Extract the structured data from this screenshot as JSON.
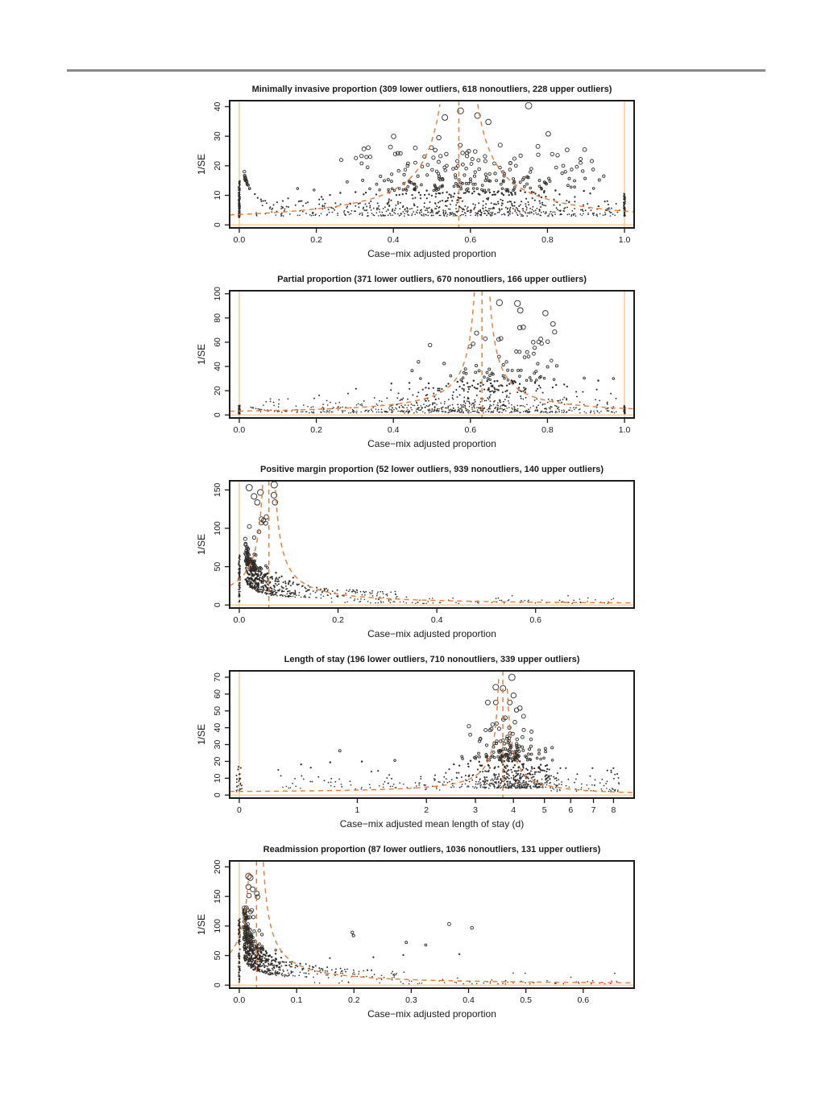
{
  "page": {
    "background": "#ffffff",
    "top_rule_color": "#8a8a8a"
  },
  "figure": {
    "point_color": "#2e2a26",
    "funnel_line_color": "#e87a33",
    "reference_line_color": "#f9c489",
    "frame_color": "#1c1c1c",
    "seed": 1337
  },
  "chart_data": [
    {
      "type": "scatter",
      "title": "Minimally invasive proportion (309 lower outliers, 618 nonoutliers, 228 upper outliers)",
      "xlabel": "Case−mix adjusted proportion",
      "ylabel": "1/SE",
      "x_scale": "linear",
      "xlim": [
        0,
        1
      ],
      "ylim": [
        0,
        41
      ],
      "x_ticks": [
        0,
        0.2,
        0.4,
        0.6,
        0.8,
        1.0
      ],
      "x_tick_labels": [
        "0.0",
        "0.2",
        "0.4",
        "0.6",
        "0.8",
        "1.0"
      ],
      "y_ticks": [
        0,
        10,
        20,
        30,
        40
      ],
      "target": 0.57,
      "limit_k": 2,
      "ref_x": [
        0,
        1
      ],
      "ref_y": [
        0
      ],
      "legend": "off",
      "grid": "off",
      "counts": {
        "lower_outliers": 309,
        "nonoutliers": 618,
        "upper_outliers": 228
      },
      "gen": {
        "columns": [
          {
            "x": 0.0,
            "n": 130,
            "ymin": 2.5,
            "ymax": 15
          },
          {
            "x": 1.0,
            "n": 75,
            "ymin": 3,
            "ymax": 10.5
          }
        ],
        "strands": {
          "count": 1,
          "a": 2.0,
          "xmin": 0.013,
          "xmax": 0.12,
          "nPer": 26
        },
        "clusters": [
          {
            "n": 380,
            "x": {
              "type": "normal",
              "mean": 0.6,
              "sd": 0.18,
              "min": 0.03,
              "max": 0.99
            },
            "y": {
              "type": "exp",
              "base": 3,
              "mean": 3.5,
              "max": 20
            }
          },
          {
            "n": 300,
            "x": {
              "type": "uniform",
              "min": 0.03,
              "max": 0.99
            },
            "y": {
              "type": "exp",
              "base": 3,
              "mean": 2.5,
              "max": 14
            }
          },
          {
            "n": 150,
            "x": {
              "type": "normal",
              "mean": 0.58,
              "sd": 0.13,
              "min": 0.28,
              "max": 0.95
            },
            "y": {
              "type": "exp",
              "base": 10,
              "mean": 6,
              "max": 38
            }
          },
          {
            "n": 60,
            "x": {
              "type": "uniform",
              "min": 0.25,
              "max": 0.95
            },
            "y": {
              "type": "uniform",
              "min": 14,
              "max": 27
            }
          },
          {
            "n": 5,
            "x": {
              "type": "normal",
              "mean": 0.62,
              "sd": 0.1,
              "min": 0.4,
              "max": 0.85
            },
            "y": {
              "type": "uniform",
              "min": 33,
              "max": 40.5
            }
          }
        ]
      }
    },
    {
      "type": "scatter",
      "title": "Partial proportion (371 lower outliers, 670 nonoutliers, 166 upper outliers)",
      "xlabel": "Case−mix adjusted proportion",
      "ylabel": "1/SE",
      "x_scale": "linear",
      "xlim": [
        0,
        1
      ],
      "ylim": [
        0,
        100
      ],
      "x_ticks": [
        0,
        0.2,
        0.4,
        0.6,
        0.8,
        1.0
      ],
      "x_tick_labels": [
        "0.0",
        "0.2",
        "0.4",
        "0.6",
        "0.8",
        "1.0"
      ],
      "y_ticks": [
        0,
        20,
        40,
        60,
        80,
        100
      ],
      "target": 0.63,
      "limit_k": 2,
      "ref_x": [
        0,
        1
      ],
      "ref_y": [
        0
      ],
      "legend": "off",
      "grid": "off",
      "counts": {
        "lower_outliers": 371,
        "nonoutliers": 670,
        "upper_outliers": 166
      },
      "gen": {
        "columns": [
          {
            "x": 0.0,
            "n": 110,
            "ymin": 0.8,
            "ymax": 8
          },
          {
            "x": 1.0,
            "n": 45,
            "ymin": 1,
            "ymax": 8
          }
        ],
        "strands": {
          "count": 1,
          "a": 1.1,
          "xmin": 0.03,
          "xmax": 0.3,
          "nPer": 28
        },
        "clusters": [
          {
            "n": 420,
            "x": {
              "type": "normal",
              "mean": 0.6,
              "sd": 0.16,
              "min": 0.05,
              "max": 0.99
            },
            "y": {
              "type": "exp",
              "base": 2,
              "mean": 6,
              "max": 30
            }
          },
          {
            "n": 260,
            "x": {
              "type": "uniform",
              "min": 0.05,
              "max": 0.99
            },
            "y": {
              "type": "exp",
              "base": 1.5,
              "mean": 3.5,
              "max": 18
            }
          },
          {
            "n": 150,
            "x": {
              "type": "normal",
              "mean": 0.67,
              "sd": 0.1,
              "min": 0.35,
              "max": 0.95
            },
            "y": {
              "type": "exp",
              "base": 18,
              "mean": 12,
              "max": 72
            }
          },
          {
            "n": 8,
            "x": {
              "type": "normal",
              "mean": 0.78,
              "sd": 0.07,
              "min": 0.6,
              "max": 0.92
            },
            "y": {
              "type": "uniform",
              "min": 58,
              "max": 98
            }
          }
        ]
      }
    },
    {
      "type": "scatter",
      "title": "Positive margin proportion (52 lower outliers, 939 nonoutliers, 140 upper outliers)",
      "xlabel": "Case−mix adjusted proportion",
      "ylabel": "1/SE",
      "x_scale": "linear",
      "xlim": [
        0,
        0.78
      ],
      "ylim": [
        0,
        158
      ],
      "x_ticks": [
        0,
        0.2,
        0.4,
        0.6
      ],
      "x_tick_labels": [
        "0.0",
        "0.2",
        "0.4",
        "0.6"
      ],
      "y_ticks": [
        0,
        50,
        100,
        150
      ],
      "target": 0.06,
      "limit_k": 2,
      "ref_x": [
        0
      ],
      "ref_y": [
        0
      ],
      "legend": "off",
      "grid": "off",
      "counts": {
        "lower_outliers": 52,
        "nonoutliers": 939,
        "upper_outliers": 140
      },
      "gen": {
        "columns": [
          {
            "x": 0.0,
            "n": 70,
            "ymin": 4,
            "ymax": 66
          }
        ],
        "strands": {
          "count": 6,
          "a": 3.8,
          "xmin": 0.012,
          "xmax": 0.32,
          "nPer": 52
        },
        "clusters": [
          {
            "n": 230,
            "x": {
              "type": "halfnormal",
              "base": 0.015,
              "sd": 0.045,
              "max": 0.5
            },
            "y": {
              "type": "invsqrt",
              "base": 3.2,
              "expmean": 2.2,
              "max": 150
            }
          },
          {
            "n": 90,
            "x": {
              "type": "uniform",
              "min": 0.18,
              "max": 0.77
            },
            "y": {
              "type": "exp",
              "base": 2,
              "mean": 3,
              "max": 12
            }
          },
          {
            "n": 14,
            "x": {
              "type": "normal",
              "mean": 0.05,
              "sd": 0.02,
              "min": 0.02,
              "max": 0.12
            },
            "y": {
              "type": "uniform",
              "min": 95,
              "max": 157
            }
          }
        ]
      }
    },
    {
      "type": "scatter",
      "title": "Length of stay (196 lower outliers, 710 nonoutliers, 339 upper outliers)",
      "xlabel": "Case−mix adjusted mean length of stay (d)",
      "ylabel": "1/SE",
      "x_scale": "log1p",
      "xlim": [
        0,
        8.6
      ],
      "ylim": [
        0,
        72
      ],
      "x_ticks": [
        0,
        1,
        2,
        3,
        4,
        5,
        6,
        7,
        8
      ],
      "x_tick_labels": [
        "0",
        "1",
        "2",
        "3",
        "4",
        "5",
        "6",
        "7",
        "8"
      ],
      "y_ticks": [
        0,
        10,
        20,
        30,
        40,
        50,
        60,
        70
      ],
      "target": 3.7,
      "limit_k": 8,
      "ref_x": [
        0
      ],
      "ref_y": [
        0
      ],
      "legend": "off",
      "grid": "off",
      "counts": {
        "lower_outliers": 196,
        "nonoutliers": 710,
        "upper_outliers": 339
      },
      "gen": {
        "columns": [
          {
            "x": 0.0,
            "n": 28,
            "ymin": 2,
            "ymax": 17
          }
        ],
        "clusters": [
          {
            "n": 520,
            "x": {
              "type": "normal",
              "mean": 4.0,
              "sd": 0.75,
              "min": 2.1,
              "max": 6.8
            },
            "y": {
              "type": "exp",
              "base": 4,
              "mean": 6,
              "max": 32
            }
          },
          {
            "n": 110,
            "x": {
              "type": "normal",
              "mean": 3.85,
              "sd": 0.4,
              "min": 2.8,
              "max": 5.2
            },
            "y": {
              "type": "exp",
              "base": 20,
              "mean": 9,
              "max": 55
            }
          },
          {
            "n": 90,
            "x": {
              "type": "uniform",
              "min": 0.25,
              "max": 2.6
            },
            "y": {
              "type": "exp",
              "base": 3,
              "mean": 5,
              "max": 30
            }
          },
          {
            "n": 60,
            "x": {
              "type": "uniform",
              "min": 5.2,
              "max": 8.5
            },
            "y": {
              "type": "exp",
              "base": 2,
              "mean": 4,
              "max": 16
            }
          },
          {
            "n": 4,
            "x": {
              "type": "normal",
              "mean": 3.75,
              "sd": 0.15,
              "min": 3.4,
              "max": 4.2
            },
            "y": {
              "type": "uniform",
              "min": 52,
              "max": 71
            }
          }
        ]
      }
    },
    {
      "type": "scatter",
      "title": "Readmission proportion (87 lower outliers, 1036 nonoutliers, 131 upper outliers)",
      "xlabel": "Case−mix adjusted proportion",
      "ylabel": "1/SE",
      "x_scale": "linear",
      "xlim": [
        0,
        0.672
      ],
      "ylim": [
        0,
        205
      ],
      "x_ticks": [
        0,
        0.1,
        0.2,
        0.3,
        0.4,
        0.5,
        0.6
      ],
      "x_tick_labels": [
        "0.0",
        "0.1",
        "0.2",
        "0.3",
        "0.4",
        "0.5",
        "0.6"
      ],
      "y_ticks": [
        0,
        50,
        100,
        150,
        200
      ],
      "target": 0.03,
      "limit_k": 2.5,
      "ref_x": [
        0
      ],
      "ref_y": [
        0
      ],
      "legend": "off",
      "grid": "off",
      "counts": {
        "lower_outliers": 87,
        "nonoutliers": 1036,
        "upper_outliers": 131
      },
      "gen": {
        "columns": [
          {
            "x": 0.0,
            "n": 80,
            "ymin": 5,
            "ymax": 112
          }
        ],
        "strands": {
          "count": 6,
          "a": 4.8,
          "xmin": 0.008,
          "xmax": 0.28,
          "nPer": 48
        },
        "clusters": [
          {
            "n": 260,
            "x": {
              "type": "halfnormal",
              "base": 0.008,
              "sd": 0.035,
              "max": 0.55
            },
            "y": {
              "type": "invsqrt",
              "base": 4,
              "expmean": 3,
              "max": 195
            }
          },
          {
            "n": 70,
            "x": {
              "type": "uniform",
              "min": 0.12,
              "max": 0.67
            },
            "y": {
              "type": "exp",
              "base": 2,
              "mean": 5,
              "max": 22
            }
          },
          {
            "n": 10,
            "x": {
              "type": "uniform",
              "min": 0.1,
              "max": 0.55
            },
            "y": {
              "type": "uniform",
              "min": 45,
              "max": 105
            }
          },
          {
            "n": 6,
            "x": {
              "type": "normal",
              "mean": 0.02,
              "sd": 0.01,
              "min": 0.008,
              "max": 0.05
            },
            "y": {
              "type": "uniform",
              "min": 148,
              "max": 198
            }
          }
        ]
      }
    }
  ]
}
